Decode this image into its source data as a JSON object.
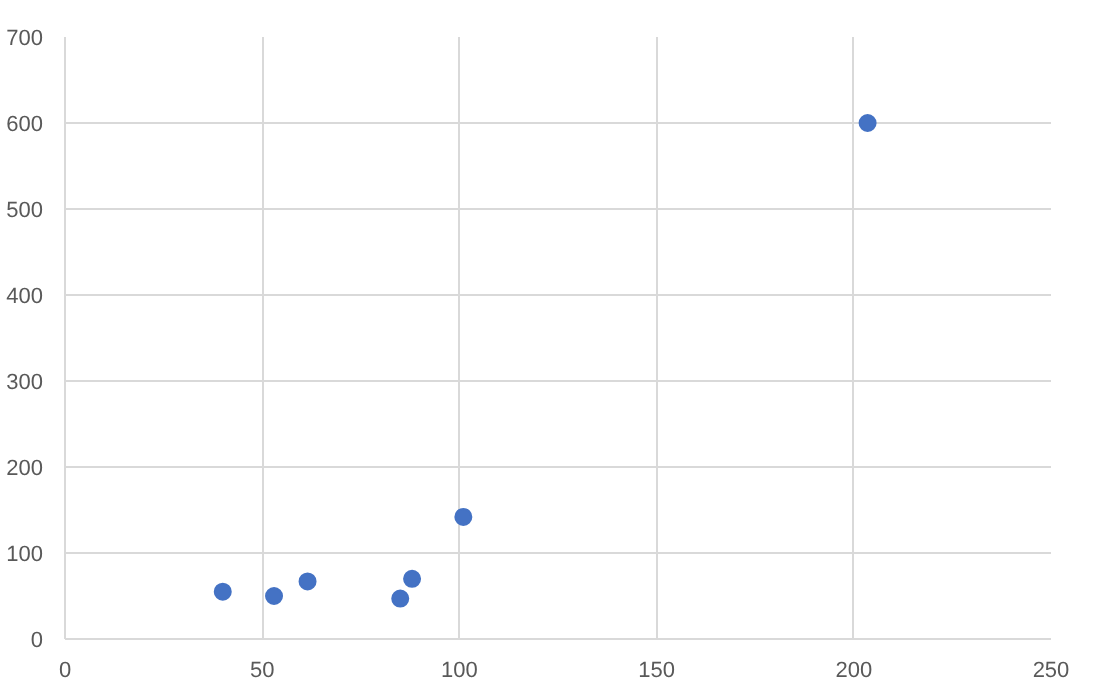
{
  "chart_data": {
    "type": "scatter",
    "x": [
      40,
      53,
      61.5,
      85,
      88,
      101,
      203.5
    ],
    "series": [
      {
        "color": "#4472c4",
        "values": [
          55,
          50,
          67,
          47,
          70,
          142,
          600
        ]
      }
    ],
    "xlim": [
      0,
      250
    ],
    "xticks": [
      0,
      50,
      100,
      150,
      200,
      250
    ],
    "ylim": [
      0,
      700
    ],
    "yticks": [
      0,
      100,
      200,
      300,
      400,
      500,
      600,
      700
    ],
    "grid": true,
    "marker": "circle"
  }
}
